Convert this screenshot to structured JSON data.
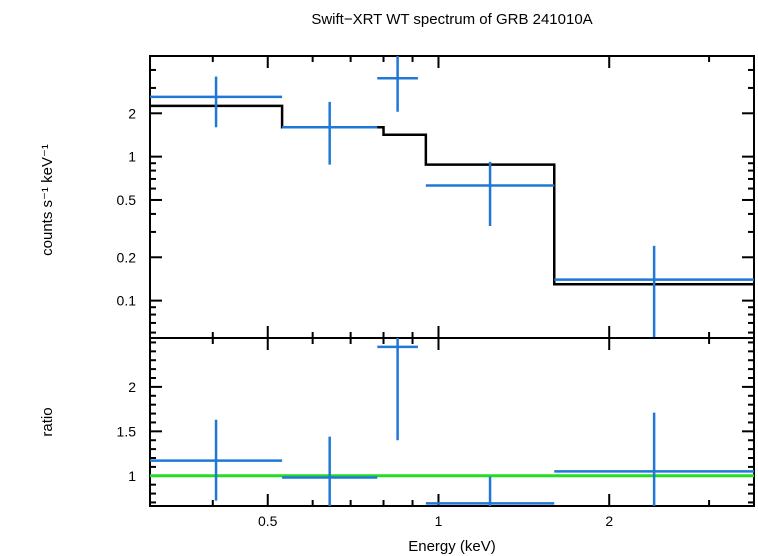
{
  "chart_data": [
    {
      "type": "scatter",
      "panel": "spectrum",
      "title": "Swift−XRT WT spectrum of GRB 241010A",
      "xlabel": "Energy (keV)",
      "ylabel": "counts s⁻¹ keV⁻¹",
      "xscale": "log",
      "yscale": "log",
      "xlim": [
        0.31,
        3.6
      ],
      "ylim": [
        0.055,
        5.0
      ],
      "x_ticks": [
        0.5,
        1,
        2
      ],
      "x_tick_labels": [
        "0.5",
        "1",
        "2"
      ],
      "y_ticks": [
        0.1,
        0.2,
        0.5,
        1,
        2
      ],
      "y_tick_labels": [
        "0.1",
        "0.2",
        "0.5",
        "1",
        "2"
      ],
      "colors": {
        "data": "#1f78d6",
        "model": "#000000",
        "reference": "#22dd22"
      },
      "data_points": [
        {
          "xlo": 0.31,
          "xhi": 0.53,
          "y": 2.6,
          "ylo": 1.6,
          "yhi": 3.6
        },
        {
          "xlo": 0.53,
          "xhi": 0.78,
          "y": 1.6,
          "ylo": 0.88,
          "yhi": 2.4
        },
        {
          "xlo": 0.78,
          "xhi": 0.92,
          "y": 3.5,
          "ylo": 2.05,
          "yhi": 5.0
        },
        {
          "xlo": 0.95,
          "xhi": 1.6,
          "y": 0.63,
          "ylo": 0.33,
          "yhi": 0.92
        },
        {
          "xlo": 1.6,
          "xhi": 3.6,
          "y": 0.14,
          "ylo": 0.055,
          "yhi": 0.24
        }
      ],
      "model_steps": [
        {
          "xlo": 0.31,
          "xhi": 0.53,
          "y": 2.25
        },
        {
          "xlo": 0.53,
          "xhi": 0.8,
          "y": 1.6
        },
        {
          "xlo": 0.8,
          "xhi": 0.95,
          "y": 1.42
        },
        {
          "xlo": 0.95,
          "xhi": 1.6,
          "y": 0.88
        },
        {
          "xlo": 1.6,
          "xhi": 3.6,
          "y": 0.13
        }
      ]
    },
    {
      "type": "scatter",
      "panel": "ratio",
      "xlabel": "Energy (keV)",
      "ylabel": "ratio",
      "xscale": "log",
      "yscale": "linear",
      "xlim": [
        0.31,
        3.6
      ],
      "ylim": [
        0.66,
        2.55
      ],
      "y_ticks": [
        1,
        1.5,
        2
      ],
      "y_tick_labels": [
        "1",
        "1.5",
        "2"
      ],
      "reference_line": 1.0,
      "data_points": [
        {
          "xlo": 0.31,
          "xhi": 0.53,
          "y": 1.17,
          "ylo": 0.72,
          "yhi": 1.63
        },
        {
          "xlo": 0.53,
          "xhi": 0.78,
          "y": 0.98,
          "ylo": 0.66,
          "yhi": 1.44
        },
        {
          "xlo": 0.78,
          "xhi": 0.92,
          "y": 2.45,
          "ylo": 1.4,
          "yhi": 2.55
        },
        {
          "xlo": 0.95,
          "xhi": 1.6,
          "y": 0.69,
          "ylo": 0.66,
          "yhi": 0.99
        },
        {
          "xlo": 1.6,
          "xhi": 3.6,
          "y": 1.05,
          "ylo": 0.66,
          "yhi": 1.71
        }
      ]
    }
  ]
}
